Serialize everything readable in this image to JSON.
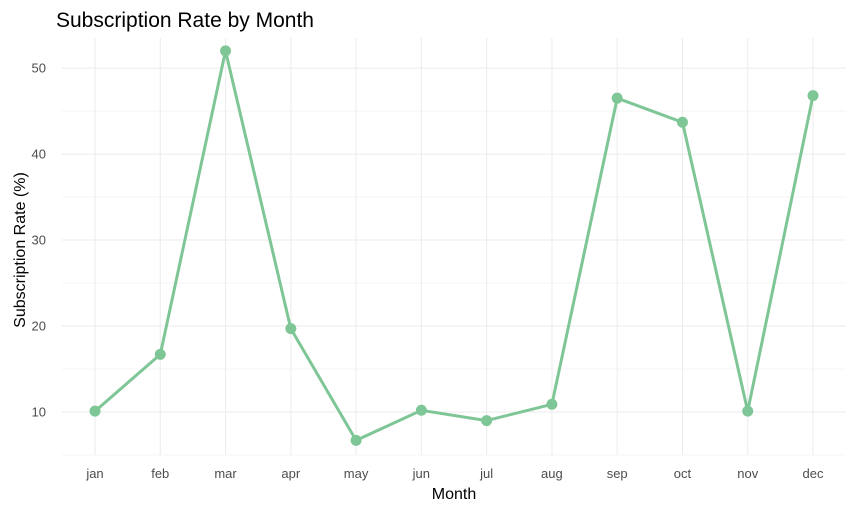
{
  "chart_data": {
    "type": "line",
    "title": "Subscription Rate by Month",
    "xlabel": "Month",
    "ylabel": "Subscription Rate (%)",
    "categories": [
      "jan",
      "feb",
      "mar",
      "apr",
      "may",
      "jun",
      "jul",
      "aug",
      "sep",
      "oct",
      "nov",
      "dec"
    ],
    "series": [
      {
        "values": [
          10.1,
          16.7,
          52.0,
          19.7,
          6.7,
          10.2,
          9.0,
          10.9,
          46.5,
          43.7,
          10.1,
          46.8
        ],
        "color": "#7fc697"
      }
    ],
    "yticks": [
      10,
      20,
      30,
      40,
      50
    ],
    "ylim": [
      5,
      53.5
    ],
    "grid": true,
    "legend": "none"
  }
}
